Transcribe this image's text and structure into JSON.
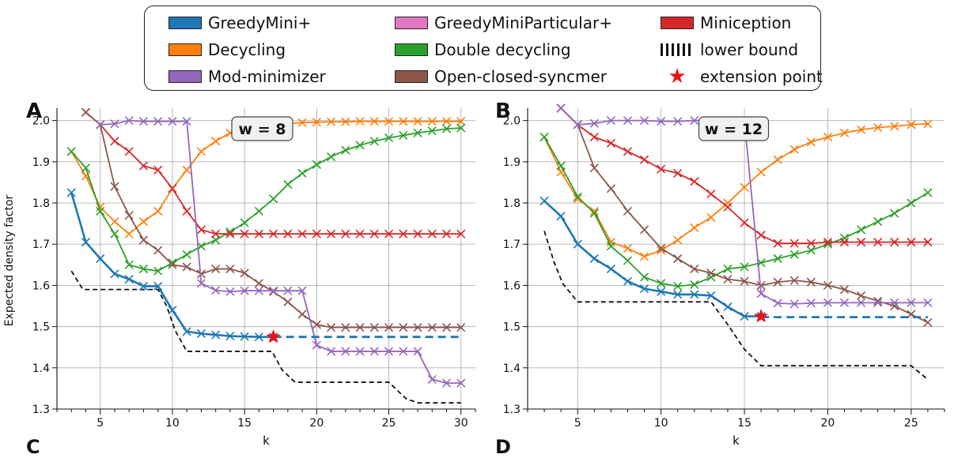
{
  "legend": {
    "entries": [
      {
        "label": "GreedyMini+",
        "color": "#1f77b4",
        "kind": "swatch"
      },
      {
        "label": "Decycling",
        "color": "#ff7f0e",
        "kind": "swatch"
      },
      {
        "label": "Mod-minimizer",
        "color": "#9467bd",
        "kind": "swatch"
      },
      {
        "label": "GreedyMiniParticular+",
        "color": "#e377c2",
        "kind": "swatch"
      },
      {
        "label": "Double decycling",
        "color": "#2ca02c",
        "kind": "swatch"
      },
      {
        "label": "Open-closed-syncmer",
        "color": "#8c564b",
        "kind": "swatch"
      },
      {
        "label": "Miniception",
        "color": "#d62728",
        "kind": "swatch"
      },
      {
        "label": "lower bound",
        "color": "#111111",
        "kind": "hatch"
      },
      {
        "label": "extension point",
        "color": "#e8131a",
        "kind": "star"
      }
    ]
  },
  "panels": {
    "A": {
      "letter": "A"
    },
    "B": {
      "letter": "B"
    },
    "C": {
      "letter": "C"
    },
    "D": {
      "letter": "D"
    }
  },
  "ylabel": "Expected density factor",
  "chart_data": [
    {
      "type": "line",
      "panel": "A",
      "title": "w = 8",
      "xlabel": "k",
      "ylabel": "Expected density factor",
      "xlim": [
        2,
        31
      ],
      "ylim": [
        1.3,
        2.03
      ],
      "xticks": [
        5,
        10,
        15,
        20,
        25,
        30
      ],
      "yticks": [
        1.3,
        1.4,
        1.5,
        1.6,
        1.7,
        1.8,
        1.9,
        2.0
      ],
      "grid": true,
      "series": [
        {
          "name": "Decycling",
          "color": "#ff7f0e",
          "x": [
            3,
            4,
            5,
            6,
            7,
            8,
            9,
            10,
            11,
            12,
            13,
            14,
            15,
            16,
            17,
            18,
            19,
            20,
            21,
            22,
            23,
            24,
            25,
            26,
            27,
            28,
            29,
            30
          ],
          "y": [
            1.925,
            1.865,
            1.79,
            1.755,
            1.725,
            1.755,
            1.78,
            1.835,
            1.88,
            1.925,
            1.95,
            1.97,
            1.98,
            1.985,
            1.99,
            1.993,
            1.995,
            1.996,
            1.997,
            1.997,
            1.998,
            1.998,
            1.998,
            1.998,
            1.998,
            1.998,
            1.998,
            1.998
          ]
        },
        {
          "name": "Double decycling",
          "color": "#2ca02c",
          "x": [
            3,
            4,
            5,
            6,
            7,
            8,
            9,
            10,
            11,
            12,
            13,
            14,
            15,
            16,
            17,
            18,
            19,
            20,
            21,
            22,
            23,
            24,
            25,
            26,
            27,
            28,
            29,
            30
          ],
          "y": [
            1.925,
            1.885,
            1.78,
            1.725,
            1.65,
            1.64,
            1.635,
            1.655,
            1.675,
            1.695,
            1.71,
            1.73,
            1.752,
            1.78,
            1.81,
            1.845,
            1.872,
            1.893,
            1.912,
            1.928,
            1.94,
            1.95,
            1.958,
            1.964,
            1.97,
            1.975,
            1.98,
            1.982
          ]
        },
        {
          "name": "Miniception",
          "color": "#d62728",
          "x": [
            4,
            5,
            6,
            7,
            8,
            9,
            10,
            11,
            12,
            13,
            14,
            15,
            16,
            17,
            18,
            19,
            20,
            21,
            22,
            23,
            24,
            25,
            26,
            27,
            28,
            29,
            30
          ],
          "y": [
            2.02,
            1.99,
            1.95,
            1.925,
            1.89,
            1.88,
            1.835,
            1.78,
            1.735,
            1.725,
            1.725,
            1.725,
            1.725,
            1.725,
            1.725,
            1.725,
            1.725,
            1.725,
            1.725,
            1.725,
            1.725,
            1.725,
            1.725,
            1.725,
            1.725,
            1.725,
            1.725
          ]
        },
        {
          "name": "Open-closed-syncmer",
          "color": "#8c564b",
          "x": [
            4,
            5,
            6,
            7,
            8,
            9,
            10,
            11,
            12,
            13,
            14,
            15,
            16,
            17,
            18,
            19,
            20,
            21,
            22,
            23,
            24,
            25,
            26,
            27,
            28,
            29,
            30
          ],
          "y": [
            2.02,
            1.99,
            1.84,
            1.77,
            1.71,
            1.685,
            1.65,
            1.645,
            1.628,
            1.64,
            1.64,
            1.63,
            1.605,
            1.585,
            1.56,
            1.53,
            1.505,
            1.498,
            1.498,
            1.498,
            1.498,
            1.498,
            1.498,
            1.498,
            1.498,
            1.498,
            1.498
          ]
        },
        {
          "name": "Mod-minimizer",
          "color": "#9467bd",
          "x": [
            5,
            6,
            7,
            8,
            9,
            10,
            11,
            12,
            13,
            14,
            15,
            16,
            17,
            18,
            19,
            20,
            21,
            22,
            23,
            24,
            25,
            26,
            27,
            28,
            29,
            30
          ],
          "y": [
            1.99,
            1.992,
            2.0,
            1.998,
            1.998,
            1.998,
            1.998,
            1.605,
            1.588,
            1.585,
            1.587,
            1.587,
            1.587,
            1.587,
            1.587,
            1.455,
            1.44,
            1.44,
            1.44,
            1.44,
            1.44,
            1.44,
            1.44,
            1.372,
            1.363,
            1.363
          ]
        },
        {
          "name": "GreedyMini+",
          "color": "#1f77b4",
          "x": [
            3,
            4,
            5,
            6,
            7,
            8,
            9,
            10,
            11,
            12,
            13,
            14,
            15,
            16,
            17
          ],
          "y": [
            1.825,
            1.705,
            1.665,
            1.628,
            1.615,
            1.598,
            1.598,
            1.54,
            1.488,
            1.483,
            1.48,
            1.477,
            1.476,
            1.475,
            1.475
          ]
        }
      ],
      "extension": {
        "x": [
          17,
          30
        ],
        "y": 1.475
      },
      "extension_point": {
        "x": 17,
        "y": 1.475
      },
      "lower_bound": {
        "x": [
          3,
          3.8,
          9,
          9.6,
          10.2,
          11,
          11.6,
          16.9,
          17.6,
          18.5,
          25,
          26.2,
          27,
          30
        ],
        "y": [
          1.635,
          1.59,
          1.59,
          1.55,
          1.49,
          1.44,
          1.44,
          1.44,
          1.395,
          1.365,
          1.365,
          1.325,
          1.315,
          1.315
        ]
      }
    },
    {
      "type": "line",
      "panel": "B",
      "title": "w = 12",
      "xlabel": "k",
      "ylabel": "",
      "xlim": [
        2,
        27
      ],
      "ylim": [
        1.3,
        2.03
      ],
      "xticks": [
        5,
        10,
        15,
        20,
        25
      ],
      "yticks": [
        1.3,
        1.4,
        1.5,
        1.6,
        1.7,
        1.8,
        1.9,
        2.0
      ],
      "grid": true,
      "series": [
        {
          "name": "Decycling",
          "color": "#ff7f0e",
          "x": [
            3,
            4,
            5,
            6,
            7,
            8,
            9,
            10,
            11,
            12,
            13,
            14,
            15,
            16,
            17,
            18,
            19,
            20,
            21,
            22,
            23,
            24,
            25,
            26
          ],
          "y": [
            1.96,
            1.875,
            1.81,
            1.78,
            1.705,
            1.69,
            1.67,
            1.685,
            1.71,
            1.74,
            1.765,
            1.8,
            1.838,
            1.875,
            1.905,
            1.93,
            1.948,
            1.96,
            1.97,
            1.978,
            1.983,
            1.986,
            1.99,
            1.992
          ]
        },
        {
          "name": "Double decycling",
          "color": "#2ca02c",
          "x": [
            3,
            4,
            5,
            6,
            7,
            8,
            9,
            10,
            11,
            12,
            13,
            14,
            15,
            16,
            17,
            18,
            19,
            20,
            21,
            22,
            23,
            24,
            25,
            26
          ],
          "y": [
            1.96,
            1.89,
            1.815,
            1.775,
            1.695,
            1.66,
            1.62,
            1.605,
            1.598,
            1.602,
            1.62,
            1.64,
            1.645,
            1.655,
            1.665,
            1.675,
            1.685,
            1.7,
            1.715,
            1.735,
            1.755,
            1.775,
            1.8,
            1.825
          ]
        },
        {
          "name": "Miniception",
          "color": "#d62728",
          "x": [
            4,
            5,
            6,
            7,
            8,
            9,
            10,
            11,
            12,
            13,
            14,
            15,
            16,
            17,
            18,
            19,
            20,
            21,
            22,
            23,
            24,
            25,
            26
          ],
          "y": [
            2.03,
            1.99,
            1.96,
            1.945,
            1.925,
            1.905,
            1.882,
            1.872,
            1.852,
            1.822,
            1.79,
            1.752,
            1.722,
            1.702,
            1.702,
            1.702,
            1.705,
            1.705,
            1.705,
            1.705,
            1.705,
            1.705,
            1.705
          ]
        },
        {
          "name": "Open-closed-syncmer",
          "color": "#8c564b",
          "x": [
            4,
            5,
            6,
            7,
            8,
            9,
            10,
            11,
            12,
            13,
            14,
            15,
            16,
            17,
            18,
            19,
            20,
            21,
            22,
            23,
            24,
            25,
            26
          ],
          "y": [
            2.03,
            1.99,
            1.885,
            1.835,
            1.78,
            1.735,
            1.69,
            1.665,
            1.64,
            1.63,
            1.615,
            1.61,
            1.6,
            1.608,
            1.612,
            1.608,
            1.6,
            1.59,
            1.575,
            1.562,
            1.55,
            1.53,
            1.51
          ]
        },
        {
          "name": "Mod-minimizer",
          "color": "#9467bd",
          "x": [
            4,
            5,
            6,
            7,
            8,
            9,
            10,
            11,
            12,
            13,
            14,
            15,
            16,
            17,
            18,
            19,
            20,
            21,
            22,
            23,
            24,
            25,
            26
          ],
          "y": [
            2.03,
            1.99,
            1.993,
            2.0,
            2.0,
            2.0,
            1.998,
            1.998,
            2.0,
            2.0,
            2.0,
            2.0,
            1.58,
            1.557,
            1.555,
            1.557,
            1.558,
            1.558,
            1.558,
            1.558,
            1.558,
            1.558,
            1.558
          ]
        },
        {
          "name": "GreedyMini+",
          "color": "#1f77b4",
          "x": [
            3,
            4,
            5,
            6,
            7,
            8,
            9,
            10,
            11,
            12,
            13,
            14,
            15,
            16
          ],
          "y": [
            1.805,
            1.768,
            1.7,
            1.665,
            1.64,
            1.61,
            1.592,
            1.585,
            1.578,
            1.578,
            1.575,
            1.548,
            1.525,
            1.525
          ]
        }
      ],
      "extension": {
        "x": [
          16,
          26
        ],
        "y": 1.523
      },
      "extension_point": {
        "x": 16,
        "y": 1.525
      },
      "lower_bound": {
        "x": [
          3,
          3.6,
          4.1,
          5,
          13,
          14,
          15,
          16,
          25,
          25.6,
          26
        ],
        "y": [
          1.732,
          1.655,
          1.605,
          1.56,
          1.56,
          1.505,
          1.445,
          1.405,
          1.405,
          1.385,
          1.372
        ]
      }
    }
  ]
}
